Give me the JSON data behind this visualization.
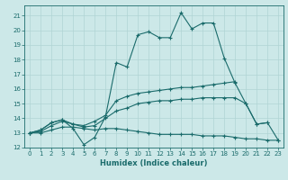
{
  "title": "",
  "xlabel": "Humidex (Indice chaleur)",
  "bg_color": "#cce8e8",
  "line_color": "#1a6b6b",
  "grid_color": "#b0d4d4",
  "xlim": [
    -0.5,
    23.5
  ],
  "ylim": [
    12,
    21.7
  ],
  "yticks": [
    12,
    13,
    14,
    15,
    16,
    17,
    18,
    19,
    20,
    21
  ],
  "xticks": [
    0,
    1,
    2,
    3,
    4,
    5,
    6,
    7,
    8,
    9,
    10,
    11,
    12,
    13,
    14,
    15,
    16,
    17,
    18,
    19,
    20,
    21,
    22,
    23
  ],
  "series": [
    {
      "x": [
        0,
        1,
        2,
        3,
        4,
        5,
        6,
        7,
        8,
        9,
        10,
        11,
        12,
        13,
        14,
        15,
        16,
        17,
        18,
        19,
        20,
        21,
        22,
        23
      ],
      "y": [
        13.0,
        13.2,
        13.7,
        13.9,
        13.3,
        12.2,
        12.7,
        14.1,
        17.8,
        17.5,
        19.7,
        19.9,
        19.5,
        19.5,
        21.2,
        20.1,
        20.5,
        20.5,
        18.1,
        16.4,
        15.0,
        13.6,
        13.7,
        12.5
      ]
    },
    {
      "x": [
        0,
        1,
        2,
        3,
        4,
        5,
        6,
        7,
        8,
        9,
        10,
        11,
        12,
        13,
        14,
        15,
        16,
        17,
        18,
        19,
        20,
        21,
        22,
        23
      ],
      "y": [
        13.0,
        13.2,
        13.7,
        13.9,
        13.6,
        13.5,
        13.8,
        14.2,
        15.2,
        15.5,
        15.7,
        15.8,
        15.9,
        16.0,
        16.1,
        16.1,
        16.2,
        16.3,
        16.4,
        16.5,
        null,
        null,
        null,
        null
      ]
    },
    {
      "x": [
        0,
        1,
        2,
        3,
        4,
        5,
        6,
        7,
        8,
        9,
        10,
        11,
        12,
        13,
        14,
        15,
        16,
        17,
        18,
        19,
        20,
        21,
        22,
        23
      ],
      "y": [
        13.0,
        13.1,
        13.5,
        13.8,
        13.6,
        13.4,
        13.5,
        14.0,
        14.5,
        14.7,
        15.0,
        15.1,
        15.2,
        15.2,
        15.3,
        15.3,
        15.4,
        15.4,
        15.4,
        15.4,
        15.0,
        13.6,
        13.7,
        null
      ]
    },
    {
      "x": [
        0,
        1,
        2,
        3,
        4,
        5,
        6,
        7,
        8,
        9,
        10,
        11,
        12,
        13,
        14,
        15,
        16,
        17,
        18,
        19,
        20,
        21,
        22,
        23
      ],
      "y": [
        13.0,
        13.0,
        13.2,
        13.4,
        13.4,
        13.3,
        13.2,
        13.3,
        13.3,
        13.2,
        13.1,
        13.0,
        12.9,
        12.9,
        12.9,
        12.9,
        12.8,
        12.8,
        12.8,
        12.7,
        12.6,
        12.6,
        12.5,
        12.5
      ]
    }
  ]
}
